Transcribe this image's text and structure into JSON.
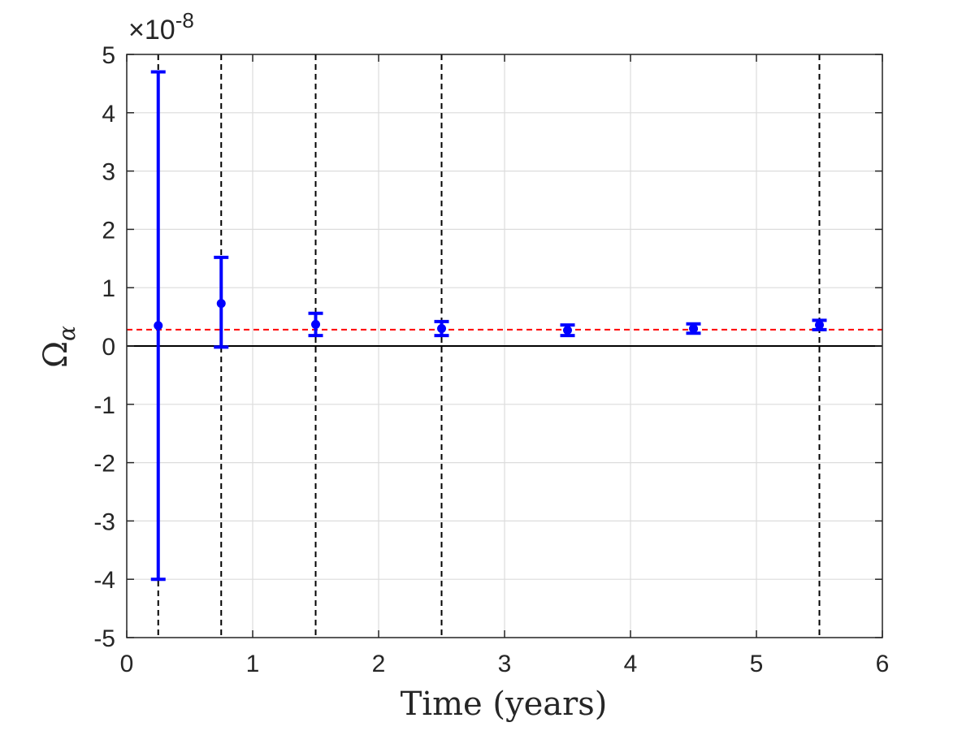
{
  "chart_data": {
    "type": "scatter",
    "title": "",
    "xlabel": "Time (years)",
    "ylabel": "Ω",
    "ylabel_subscript": "α",
    "y_exponent_prefix": "×10",
    "y_exponent": "-8",
    "xlim": [
      0,
      6
    ],
    "ylim": [
      -5,
      5
    ],
    "x_ticks": [
      0,
      1,
      2,
      3,
      4,
      5,
      6
    ],
    "y_ticks": [
      -5,
      -4,
      -3,
      -2,
      -1,
      0,
      1,
      2,
      3,
      4,
      5
    ],
    "x_tick_labels": [
      "0",
      "1",
      "2",
      "3",
      "4",
      "5",
      "6"
    ],
    "y_tick_labels": [
      "-5",
      "-4",
      "-3",
      "-2",
      "-1",
      "0",
      "1",
      "2",
      "3",
      "4",
      "5"
    ],
    "grid": true,
    "series": [
      {
        "type": "errorbar",
        "color": "#0000ff",
        "x": [
          0.25,
          0.75,
          1.5,
          2.5,
          3.5,
          4.5,
          5.5
        ],
        "y": [
          0.35,
          0.73,
          0.37,
          0.3,
          0.27,
          0.3,
          0.36
        ],
        "y_lower": [
          -4.0,
          -0.02,
          0.18,
          0.18,
          0.18,
          0.22,
          0.28
        ],
        "y_upper": [
          4.7,
          1.52,
          0.56,
          0.42,
          0.36,
          0.38,
          0.44
        ]
      }
    ],
    "reference_lines": [
      {
        "orientation": "horizontal",
        "value": 0.28,
        "style": "dashed",
        "color": "#ff0000"
      },
      {
        "orientation": "horizontal",
        "value": 0,
        "style": "solid",
        "color": "#000000"
      }
    ],
    "vertical_markers": {
      "x": [
        0.25,
        0.75,
        1.5,
        2.5,
        5.5
      ],
      "style": "dashed",
      "color": "#000000"
    }
  }
}
